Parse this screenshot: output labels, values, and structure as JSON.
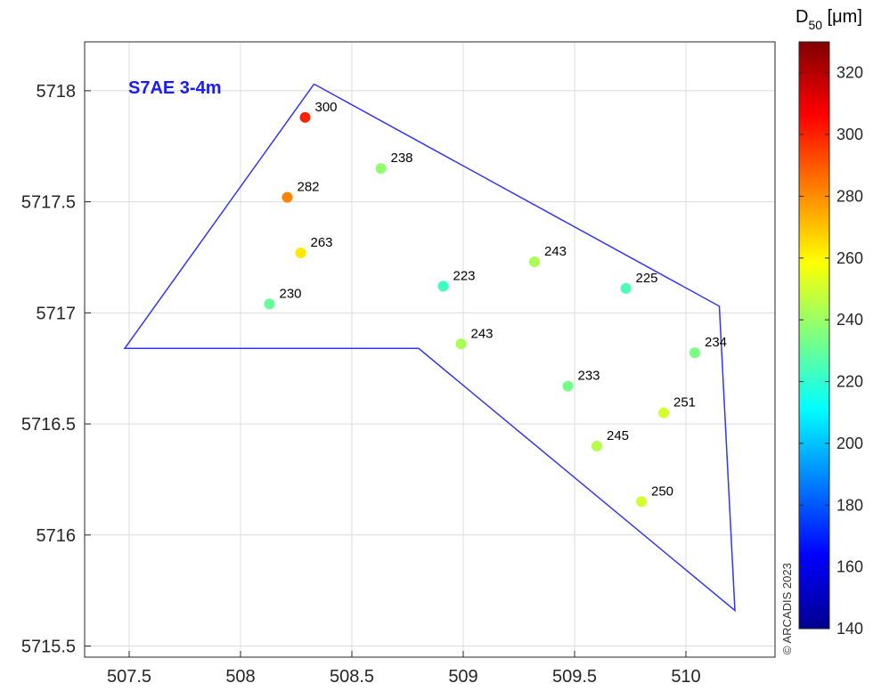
{
  "chart_data": {
    "type": "scatter",
    "title": "S7AE 3-4m",
    "title_color": "#1a1aff",
    "xlim": [
      507.3,
      510.4
    ],
    "ylim": [
      5715.45,
      5718.22
    ],
    "x_ticks": [
      507.5,
      508,
      508.5,
      509,
      509.5,
      510
    ],
    "x_tick_labels": [
      "507.5",
      "508",
      "508.5",
      "509",
      "509.5",
      "510"
    ],
    "y_ticks": [
      5715.5,
      5716,
      5716.5,
      5717,
      5717.5,
      5718
    ],
    "y_tick_labels": [
      "5715.5",
      "5716",
      "5716.5",
      "5717",
      "5717.5",
      "5718"
    ],
    "grid": true,
    "colorbar": {
      "title_main": "D",
      "title_sub": "50",
      "title_unit": " [μm]",
      "range": [
        140,
        330
      ],
      "ticks": [
        140,
        160,
        180,
        200,
        220,
        240,
        260,
        280,
        300,
        320
      ],
      "tick_labels": [
        "140",
        "160",
        "180",
        "200",
        "220",
        "240",
        "260",
        "280",
        "300",
        "320"
      ],
      "colormap": "jet"
    },
    "polygon": {
      "color": "#3333ff",
      "x": [
        508.33,
        510.15,
        510.22,
        508.8,
        507.48,
        508.33
      ],
      "y": [
        5718.03,
        5717.03,
        5715.66,
        5716.84,
        5716.84,
        5718.03
      ]
    },
    "points": [
      {
        "x": 508.29,
        "y": 5717.88,
        "label": "300",
        "value": 300
      },
      {
        "x": 508.63,
        "y": 5717.65,
        "label": "238",
        "value": 238
      },
      {
        "x": 508.21,
        "y": 5717.52,
        "label": "282",
        "value": 282
      },
      {
        "x": 508.27,
        "y": 5717.27,
        "label": "263",
        "value": 263
      },
      {
        "x": 509.32,
        "y": 5717.23,
        "label": "243",
        "value": 243
      },
      {
        "x": 508.91,
        "y": 5717.12,
        "label": "223",
        "value": 223
      },
      {
        "x": 509.73,
        "y": 5717.11,
        "label": "225",
        "value": 225
      },
      {
        "x": 508.13,
        "y": 5717.04,
        "label": "230",
        "value": 230
      },
      {
        "x": 508.99,
        "y": 5716.86,
        "label": "243",
        "value": 243
      },
      {
        "x": 510.04,
        "y": 5716.82,
        "label": "234",
        "value": 234
      },
      {
        "x": 509.47,
        "y": 5716.67,
        "label": "233",
        "value": 233
      },
      {
        "x": 509.9,
        "y": 5716.55,
        "label": "251",
        "value": 251
      },
      {
        "x": 509.6,
        "y": 5716.4,
        "label": "245",
        "value": 245
      },
      {
        "x": 509.8,
        "y": 5716.15,
        "label": "250",
        "value": 250
      }
    ]
  },
  "watermark": "© ARCADIS 2023"
}
